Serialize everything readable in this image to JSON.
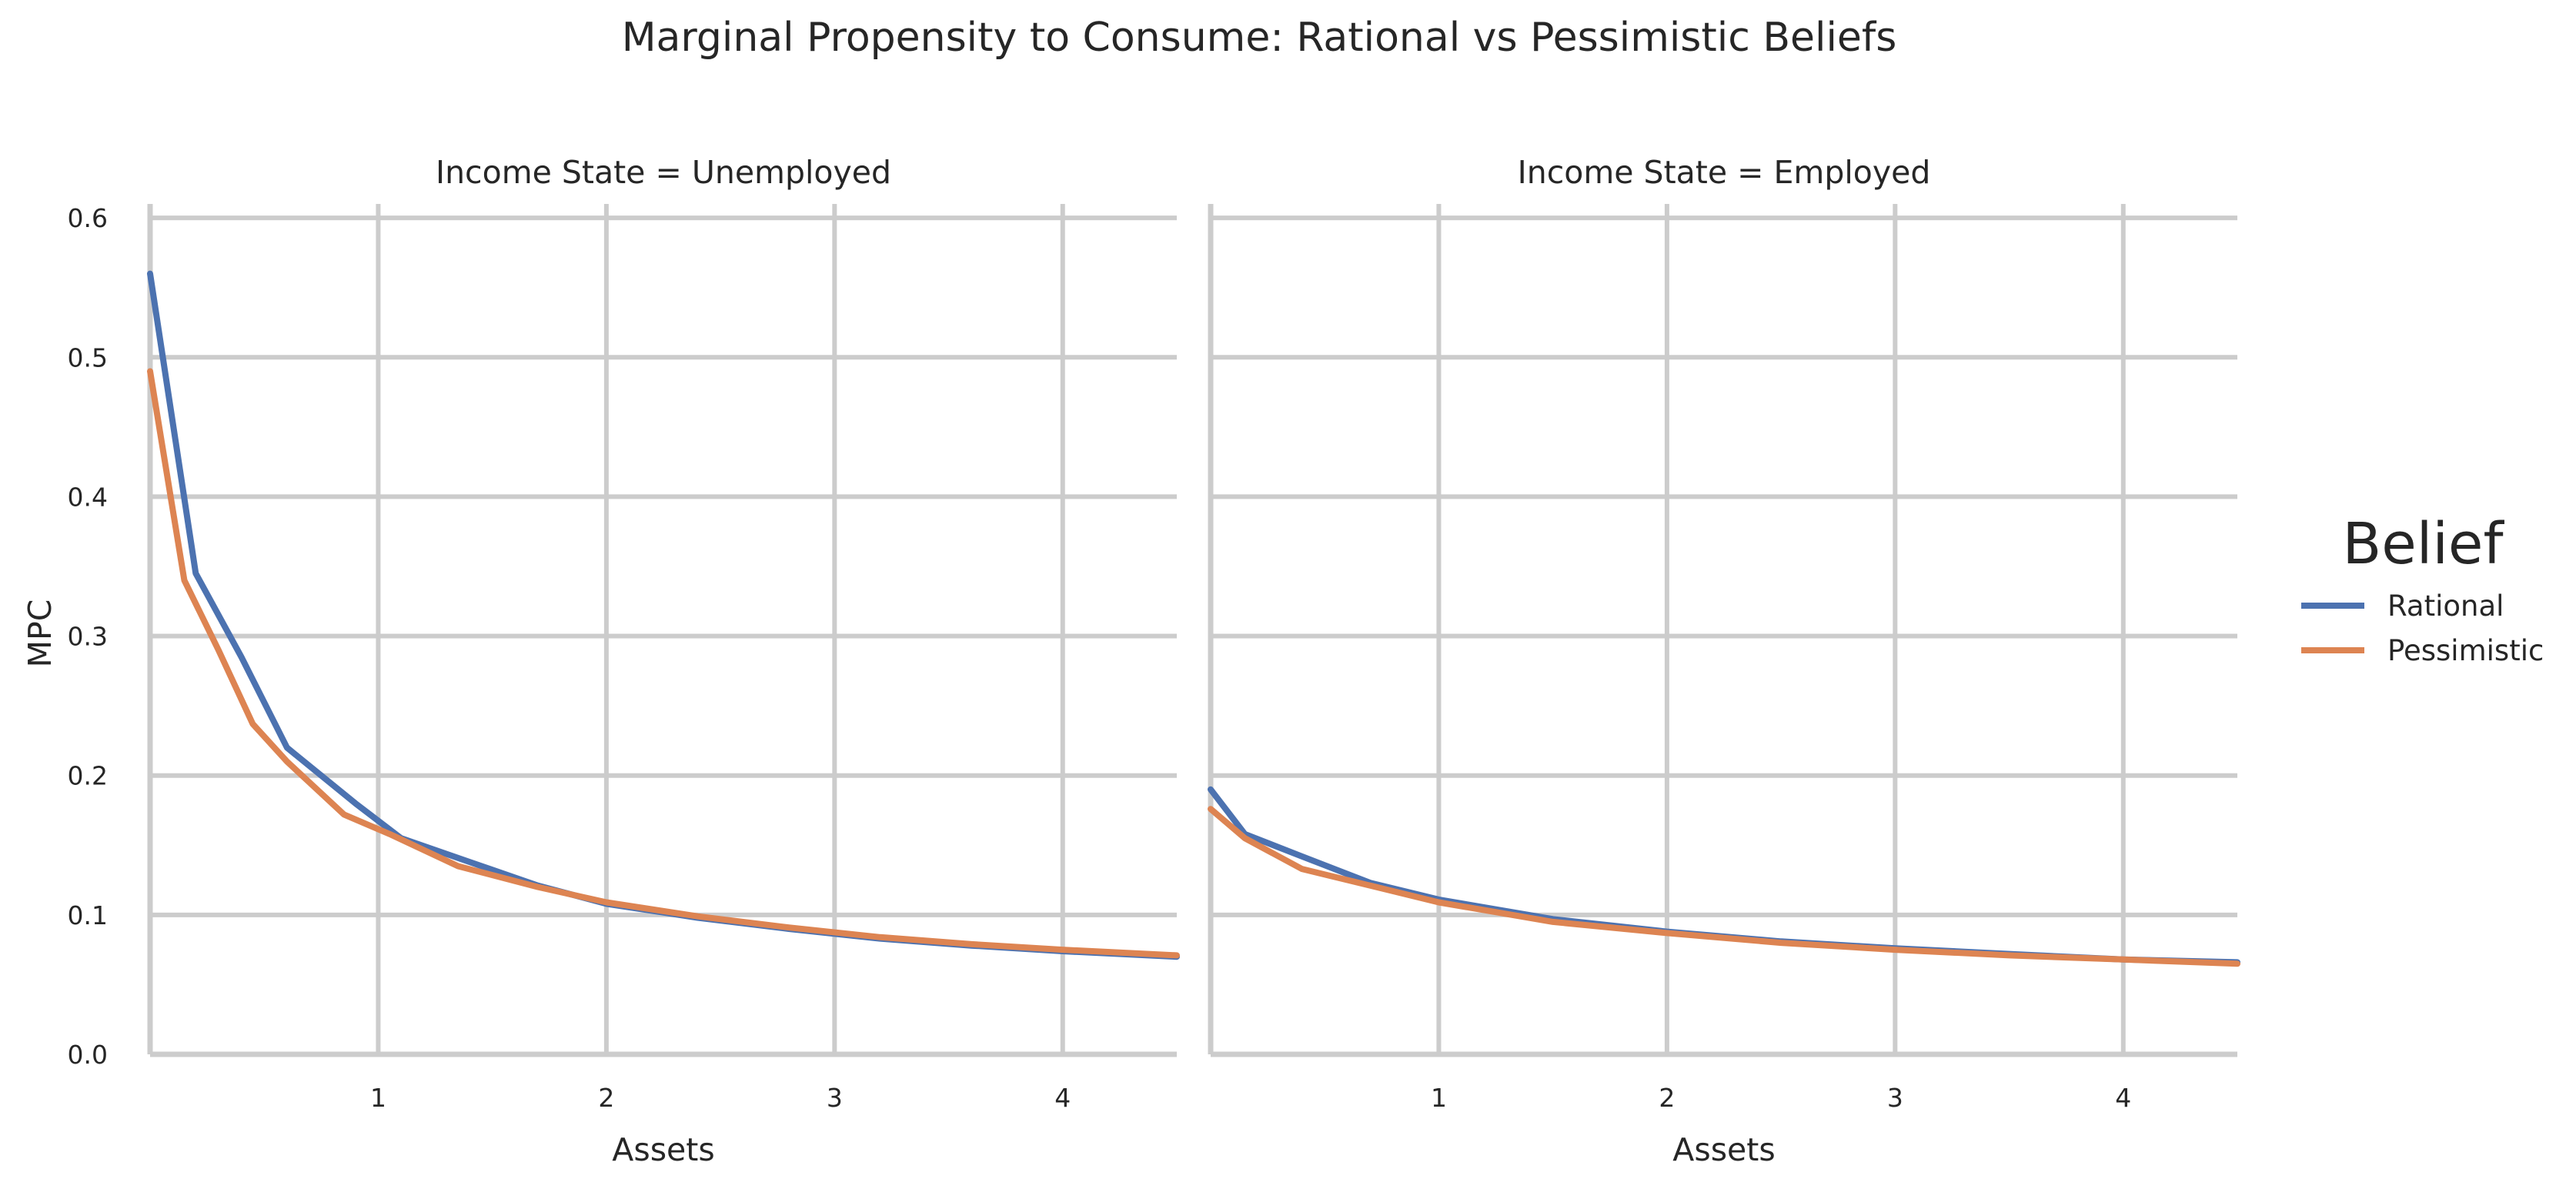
{
  "chart_data": {
    "type": "line",
    "title": "Marginal Propensity to Consume: Rational vs Pessimistic Beliefs",
    "ylabel": "MPC",
    "xlabel": "Assets",
    "xlim": [
      0,
      4.5
    ],
    "ylim": [
      0,
      0.61
    ],
    "x_ticks": [
      1,
      2,
      3,
      4
    ],
    "y_ticks": [
      0.0,
      0.1,
      0.2,
      0.3,
      0.4,
      0.5,
      0.6
    ],
    "x_tick_labels": [
      "1",
      "2",
      "3",
      "4"
    ],
    "y_tick_labels": [
      "0.0",
      "0.1",
      "0.2",
      "0.3",
      "0.4",
      "0.5",
      "0.6"
    ],
    "grid": true,
    "legend": {
      "title": "Belief",
      "placement": "right",
      "entries": [
        {
          "name": "Rational",
          "color": "#4C72B0"
        },
        {
          "name": "Pessimistic",
          "color": "#DD8452"
        }
      ]
    },
    "panels": [
      {
        "title": "Income State = Unemployed",
        "series": [
          {
            "name": "Rational",
            "color": "#4C72B0",
            "x": [
              0,
              0.2,
              0.4,
              0.6,
              0.9,
              1.1,
              1.4,
              1.7,
              2.0,
              2.4,
              2.8,
              3.2,
              3.6,
              4.0,
              4.5
            ],
            "y": [
              0.56,
              0.345,
              0.285,
              0.22,
              0.18,
              0.155,
              0.138,
              0.121,
              0.108,
              0.098,
              0.09,
              0.083,
              0.078,
              0.074,
              0.07
            ]
          },
          {
            "name": "Pessimistic",
            "color": "#DD8452",
            "x": [
              0,
              0.15,
              0.3,
              0.45,
              0.6,
              0.85,
              1.05,
              1.35,
              1.7,
              2.0,
              2.4,
              2.8,
              3.2,
              3.6,
              4.0,
              4.5
            ],
            "y": [
              0.49,
              0.34,
              0.29,
              0.237,
              0.21,
              0.172,
              0.158,
              0.135,
              0.12,
              0.109,
              0.099,
              0.091,
              0.084,
              0.079,
              0.075,
              0.071
            ]
          }
        ]
      },
      {
        "title": "Income State = Employed",
        "series": [
          {
            "name": "Rational",
            "color": "#4C72B0",
            "x": [
              0,
              0.15,
              0.4,
              0.7,
              1.0,
              1.5,
              2.0,
              2.5,
              3.0,
              3.5,
              4.0,
              4.5
            ],
            "y": [
              0.19,
              0.158,
              0.142,
              0.123,
              0.111,
              0.097,
              0.088,
              0.081,
              0.076,
              0.072,
              0.068,
              0.066
            ]
          },
          {
            "name": "Pessimistic",
            "color": "#DD8452",
            "x": [
              0,
              0.15,
              0.4,
              0.7,
              1.0,
              1.5,
              2.0,
              2.5,
              3.0,
              3.5,
              4.0,
              4.5
            ],
            "y": [
              0.176,
              0.155,
              0.133,
              0.121,
              0.109,
              0.095,
              0.087,
              0.08,
              0.075,
              0.071,
              0.068,
              0.065
            ]
          }
        ]
      }
    ]
  }
}
